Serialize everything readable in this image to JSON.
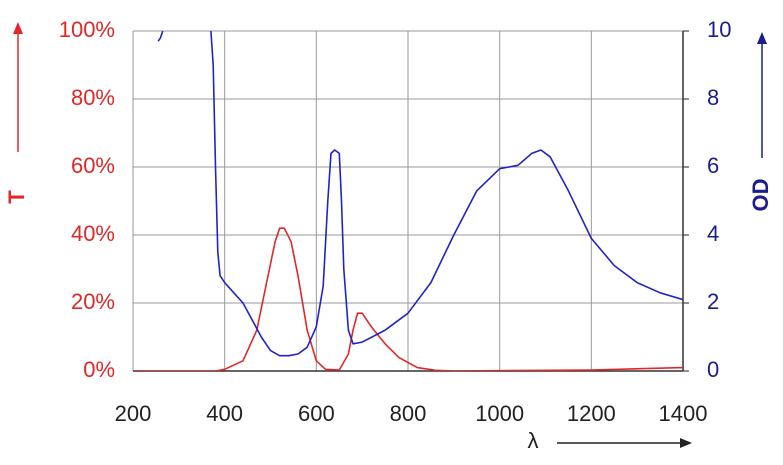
{
  "chart_data": {
    "type": "line",
    "xlabel": "λ",
    "ylabel": "T",
    "y2label": "OD",
    "xlim": [
      200,
      1400
    ],
    "xticks": [
      200,
      400,
      600,
      800,
      1000,
      1200,
      1400
    ],
    "ylim": [
      0,
      100
    ],
    "yticks": [
      {
        "value": 0,
        "label": "0%"
      },
      {
        "value": 20,
        "label": "20%"
      },
      {
        "value": 40,
        "label": "40%"
      },
      {
        "value": 60,
        "label": "60%"
      },
      {
        "value": 80,
        "label": "80%"
      },
      {
        "value": 100,
        "label": "100%"
      }
    ],
    "y2lim": [
      0,
      10
    ],
    "y2ticks": [
      0,
      2,
      4,
      6,
      8,
      10
    ],
    "grid": true,
    "y_color": "#e02828",
    "y2_color": "#1c1c8c",
    "series": [
      {
        "name": "T",
        "color": "#e02828",
        "x": [
          200,
          380,
          400,
          440,
          470,
          490,
          510,
          520,
          530,
          545,
          560,
          580,
          600,
          620,
          650,
          670,
          680,
          690,
          700,
          720,
          750,
          780,
          820,
          860,
          900,
          1200,
          1400
        ],
        "values": [
          0,
          0,
          0.5,
          3,
          12,
          25,
          38,
          42,
          42,
          38,
          28,
          12,
          3,
          0.5,
          0.3,
          5,
          12,
          17,
          17,
          13,
          8,
          4,
          1,
          0.2,
          0,
          0.3,
          1
        ]
      },
      {
        "name": "OD",
        "color": "#2222cc",
        "axis": "y2",
        "x": [
          255,
          260,
          265,
          300,
          370,
          375,
          380,
          385,
          390,
          400,
          420,
          440,
          460,
          480,
          500,
          520,
          540,
          560,
          580,
          600,
          615,
          625,
          632,
          640,
          650,
          655,
          660,
          670,
          680,
          700,
          750,
          800,
          850,
          900,
          950,
          1000,
          1040,
          1070,
          1090,
          1110,
          1150,
          1200,
          1250,
          1300,
          1350,
          1400
        ],
        "values": [
          9.7,
          9.8,
          10,
          null,
          10,
          9,
          6,
          3.5,
          2.8,
          2.6,
          2.3,
          2.0,
          1.5,
          1.0,
          0.6,
          0.45,
          0.45,
          0.5,
          0.7,
          1.3,
          2.5,
          5,
          6.4,
          6.5,
          6.4,
          5,
          3,
          1.2,
          0.8,
          0.85,
          1.2,
          1.7,
          2.6,
          4.0,
          5.3,
          5.95,
          6.05,
          6.4,
          6.5,
          6.3,
          5.3,
          3.9,
          3.1,
          2.6,
          2.3,
          2.1
        ]
      }
    ]
  }
}
